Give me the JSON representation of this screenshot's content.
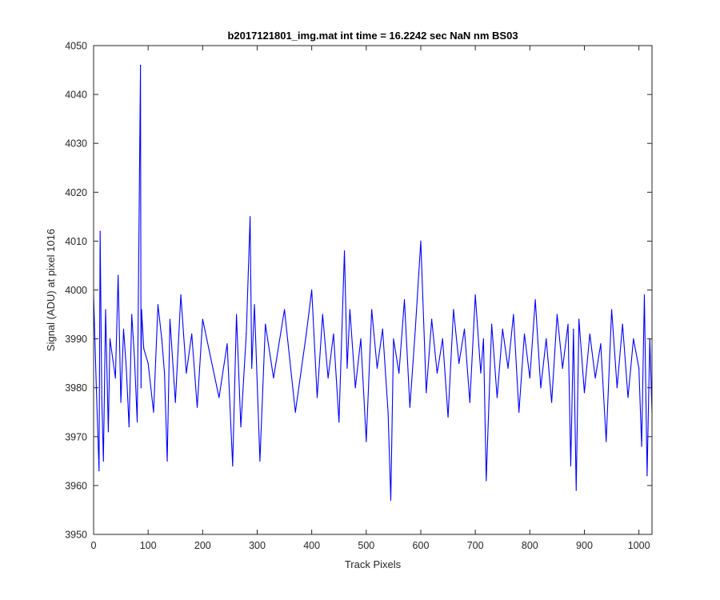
{
  "chart_data": {
    "type": "line",
    "title": "b2017121801_img.mat int time = 16.2242 sec  NaN nm BS03",
    "xlabel": "Track Pixels",
    "ylabel": "Signal (ADU) at pixel 1016",
    "xlim": [
      0,
      1024
    ],
    "ylim": [
      3950,
      4050
    ],
    "xticks": [
      "0",
      "100",
      "200",
      "300",
      "400",
      "500",
      "600",
      "700",
      "800",
      "900",
      "1000"
    ],
    "yticks": [
      "3950",
      "3960",
      "3970",
      "3980",
      "3990",
      "4000",
      "4010",
      "4020",
      "4030",
      "4040",
      "4050"
    ],
    "grid": false,
    "box": true,
    "series": [
      {
        "color": "#0000ff",
        "x": [
          0,
          5,
          10,
          12,
          15,
          18,
          22,
          27,
          30,
          40,
          45,
          50,
          55,
          60,
          65,
          70,
          75,
          80,
          86,
          87,
          88,
          92,
          100,
          110,
          118,
          125,
          130,
          135,
          140,
          150,
          160,
          170,
          180,
          190,
          200,
          215,
          230,
          245,
          255,
          262,
          270,
          280,
          287,
          290,
          295,
          305,
          315,
          330,
          350,
          370,
          390,
          400,
          410,
          420,
          430,
          440,
          450,
          460,
          465,
          470,
          480,
          490,
          500,
          510,
          520,
          530,
          540,
          545,
          550,
          560,
          570,
          580,
          590,
          600,
          610,
          620,
          630,
          640,
          650,
          660,
          670,
          680,
          690,
          700,
          710,
          715,
          720,
          730,
          740,
          750,
          760,
          770,
          780,
          790,
          800,
          810,
          820,
          830,
          840,
          850,
          860,
          870,
          875,
          880,
          885,
          890,
          900,
          910,
          920,
          930,
          940,
          950,
          960,
          970,
          980,
          990,
          1000,
          1005,
          1010,
          1015,
          1020,
          1024
        ],
        "y": [
          3999,
          3980,
          3963,
          4012,
          3978,
          3965,
          3996,
          3971,
          3990,
          3982,
          4003,
          3977,
          3992,
          3984,
          3972,
          3995,
          3986,
          3973,
          4046,
          3980,
          3996,
          3988,
          3985,
          3975,
          3997,
          3990,
          3983,
          3965,
          3994,
          3977,
          3999,
          3983,
          3991,
          3976,
          3994,
          3986,
          3978,
          3989,
          3964,
          3995,
          3972,
          3991,
          4015,
          3984,
          3997,
          3965,
          3993,
          3982,
          3996,
          3975,
          3991,
          4000,
          3978,
          3995,
          3982,
          3991,
          3973,
          4008,
          3984,
          3996,
          3980,
          3990,
          3969,
          3996,
          3984,
          3992,
          3975,
          3957,
          3990,
          3983,
          3998,
          3976,
          3992,
          4010,
          3979,
          3994,
          3983,
          3990,
          3974,
          3996,
          3985,
          3992,
          3977,
          3999,
          3983,
          3990,
          3961,
          3993,
          3978,
          3992,
          3984,
          3995,
          3975,
          3991,
          3982,
          3998,
          3980,
          3990,
          3977,
          3995,
          3984,
          3993,
          3964,
          3992,
          3959,
          3994,
          3979,
          3991,
          3982,
          3989,
          3969,
          3996,
          3980,
          3993,
          3978,
          3990,
          3984,
          3968,
          3999,
          3962,
          3990,
          3975
        ]
      }
    ]
  }
}
